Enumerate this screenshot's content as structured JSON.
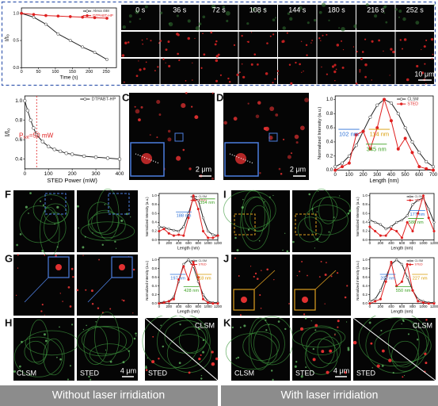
{
  "panel_labels": [
    "A",
    "B",
    "C",
    "D",
    "E",
    "F",
    "G",
    "H",
    "I",
    "J",
    "K"
  ],
  "timelapse": {
    "frames": [
      "0 s",
      "36 s",
      "72 s",
      "108 s",
      "144 s",
      "180 s",
      "216 s",
      "252 s"
    ],
    "scale_bar": "10 μm"
  },
  "charts": {
    "A": {
      "type": "line",
      "xlabel": "Time (s)",
      "ylabel": "I/I₀",
      "xlim": [
        0,
        280
      ],
      "xticks": [
        0,
        50,
        100,
        150,
        200,
        250
      ],
      "ylim": [
        0,
        1.1
      ],
      "yticks": [
        {
          "value": 0,
          "label": "0.0"
        },
        0.5,
        {
          "value": 1,
          "label": "1.0"
        }
      ],
      "x": [
        0,
        36,
        72,
        108,
        144,
        180,
        216,
        252
      ],
      "legend": "upper right",
      "series": [
        {
          "name": "Alexa 488",
          "color": "#222222",
          "values": [
            1.0,
            0.93,
            0.8,
            0.62,
            0.5,
            0.38,
            0.28,
            0.15
          ]
        },
        {
          "name": "DTPABT-HP",
          "color": "#e02020",
          "values": [
            1.0,
            0.98,
            0.96,
            0.95,
            0.94,
            0.93,
            0.92,
            0.91
          ]
        }
      ]
    },
    "B": {
      "type": "line",
      "xlabel": "STED Power (mW)",
      "ylabel": "I/I₀",
      "xlim": [
        0,
        400
      ],
      "xticks": [
        0,
        100,
        200,
        300,
        400
      ],
      "ylim": [
        0.3,
        1.05
      ],
      "yticks": [
        0.4,
        0.6,
        0.8,
        {
          "value": 1,
          "label": "1.0"
        }
      ],
      "x": [
        0,
        12,
        25,
        37,
        50,
        75,
        100,
        125,
        150,
        175,
        200,
        250,
        300,
        350,
        400
      ],
      "legend": "upper right",
      "marker_x": 50,
      "series": [
        {
          "name": "DTPABT-HP",
          "color": "#222222",
          "values": [
            1.0,
            0.9,
            0.8,
            0.72,
            0.65,
            0.58,
            0.53,
            0.5,
            0.48,
            0.46,
            0.45,
            0.43,
            0.42,
            0.41,
            0.4
          ]
        }
      ],
      "annotations": [
        {
          "text": "P",
          "sub": "sat",
          "rest": "=50 mW",
          "color": "#e02020"
        }
      ]
    },
    "E": {
      "type": "line",
      "xlabel": "Length (nm)",
      "ylabel": "Normalized Intensity (a.u.)",
      "xlim": [
        0,
        700
      ],
      "xticks": [
        0,
        100,
        200,
        300,
        400,
        500,
        600,
        700
      ],
      "ylim": [
        0,
        1.05
      ],
      "yticks": [
        {
          "value": 0,
          "label": "0.0"
        },
        0.2,
        0.4,
        0.6,
        0.8,
        {
          "value": 1,
          "label": "1.0"
        }
      ],
      "x": [
        0,
        50,
        100,
        150,
        200,
        250,
        300,
        350,
        400,
        450,
        500,
        550,
        600,
        650,
        700
      ],
      "legend": "upper right",
      "series": [
        {
          "name": "CLSM",
          "color": "#222222",
          "values": [
            0.05,
            0.1,
            0.2,
            0.35,
            0.55,
            0.75,
            0.92,
            1.0,
            0.95,
            0.8,
            0.6,
            0.4,
            0.25,
            0.12,
            0.05
          ]
        },
        {
          "name": "STED",
          "color": "#e02020",
          "values": [
            0,
            0.05,
            0.1,
            0.5,
            0.55,
            0.3,
            0.6,
            1.0,
            0.7,
            0.3,
            0.45,
            0.25,
            0.05,
            0.02,
            0
          ]
        }
      ],
      "annotations": [
        {
          "text": "102 nm",
          "color": "#2a6fd6"
        },
        {
          "text": "114 nm",
          "color": "#d99a00"
        },
        {
          "text": "345 nm",
          "color": "#3aa020"
        }
      ]
    },
    "F": {
      "type": "line",
      "xlabel": "Length (nm)",
      "ylabel": "Normalized Intensity (a.u.)",
      "xlim": [
        0,
        1200
      ],
      "xticks": [
        0,
        200,
        400,
        600,
        800,
        1000,
        1200
      ],
      "ylim": [
        0,
        1.05
      ],
      "yticks": [
        {
          "value": 0,
          "label": "0.0"
        },
        0.2,
        0.4,
        0.6,
        0.8,
        {
          "value": 1,
          "label": "1.0"
        }
      ],
      "x": [
        0,
        100,
        200,
        300,
        400,
        500,
        600,
        700,
        800,
        900,
        1000,
        1100,
        1200
      ],
      "legend": "upper right",
      "series": [
        {
          "name": "CLSM",
          "color": "#222222",
          "values": [
            0.3,
            0.28,
            0.25,
            0.22,
            0.2,
            0.3,
            0.6,
            0.95,
            0.9,
            0.5,
            0.2,
            0.12,
            0.1
          ]
        },
        {
          "name": "STED",
          "color": "#e02020",
          "values": [
            0.2,
            0.25,
            0.15,
            0.1,
            0.12,
            0.1,
            0.5,
            1.0,
            0.7,
            0.2,
            0.05,
            0.05,
            0.1
          ]
        }
      ],
      "annotations": [
        {
          "text": "188 nm",
          "color": "#2a6fd6"
        },
        {
          "text": "354 nm",
          "color": "#3aa020"
        }
      ]
    },
    "G": {
      "type": "line",
      "xlabel": "Length (nm)",
      "ylabel": "Normalized Intensity (a.u.)",
      "xlim": [
        0,
        1200
      ],
      "xticks": [
        0,
        200,
        400,
        600,
        800,
        1000,
        1200
      ],
      "ylim": [
        0,
        1.05
      ],
      "yticks": [
        {
          "value": 0,
          "label": "0.0"
        },
        0.2,
        0.4,
        0.6,
        0.8,
        {
          "value": 1,
          "label": "1.0"
        }
      ],
      "x": [
        0,
        100,
        200,
        300,
        400,
        500,
        600,
        700,
        800,
        900,
        1000,
        1100,
        1200
      ],
      "legend": "upper right",
      "series": [
        {
          "name": "CLSM",
          "color": "#222222",
          "values": [
            0.02,
            0.03,
            0.05,
            0.15,
            0.5,
            0.9,
            1.0,
            0.85,
            0.5,
            0.2,
            0.05,
            0.02,
            0.02
          ]
        },
        {
          "name": "STED",
          "color": "#e02020",
          "values": [
            0,
            0.02,
            0.05,
            0.1,
            0.55,
            0.85,
            0.55,
            0.95,
            0.6,
            0.1,
            0.02,
            0,
            0
          ]
        }
      ],
      "annotations": [
        {
          "text": "197 nm",
          "color": "#2a6fd6"
        },
        {
          "text": "218 nm",
          "color": "#d99a00"
        },
        {
          "text": "428 nm",
          "color": "#3aa020"
        }
      ]
    },
    "I": {
      "type": "line",
      "xlabel": "Length (nm)",
      "ylabel": "Normalized Intensity (a.u.)",
      "xlim": [
        0,
        1200
      ],
      "xticks": [
        0,
        200,
        400,
        600,
        800,
        1000,
        1200
      ],
      "ylim": [
        0,
        1.05
      ],
      "yticks": [
        {
          "value": 0,
          "label": "0.0"
        },
        0.2,
        0.4,
        0.6,
        0.8,
        {
          "value": 1,
          "label": "1.0"
        }
      ],
      "x": [
        0,
        100,
        200,
        300,
        400,
        500,
        600,
        700,
        800,
        900,
        1000,
        1100,
        1200
      ],
      "legend": "upper right",
      "series": [
        {
          "name": "CLSM",
          "color": "#222222",
          "values": [
            0.45,
            0.4,
            0.35,
            0.25,
            0.3,
            0.4,
            0.45,
            0.55,
            0.8,
            0.9,
            0.95,
            0.7,
            0.4
          ]
        },
        {
          "name": "STED",
          "color": "#e02020",
          "values": [
            0.3,
            0.2,
            0.1,
            0.1,
            0.25,
            0.2,
            0.05,
            0.4,
            0.2,
            0.6,
            1.0,
            0.5,
            0.2
          ]
        }
      ],
      "annotations": [
        {
          "text": "177 nm",
          "color": "#2a6fd6"
        },
        {
          "text": "588 nm",
          "color": "#3aa020"
        }
      ]
    },
    "J": {
      "type": "line",
      "xlabel": "Length (nm)",
      "ylabel": "Normalized Intensity (a.u.)",
      "xlim": [
        0,
        1200
      ],
      "xticks": [
        0,
        200,
        400,
        600,
        800,
        1000,
        1200
      ],
      "ylim": [
        0,
        1.05
      ],
      "yticks": [
        {
          "value": 0,
          "label": "0.0"
        },
        0.2,
        0.4,
        0.6,
        0.8,
        {
          "value": 1,
          "label": "1.0"
        }
      ],
      "x": [
        0,
        100,
        200,
        300,
        400,
        500,
        600,
        700,
        800,
        900,
        1000,
        1100,
        1200
      ],
      "legend": "upper right",
      "series": [
        {
          "name": "CLSM",
          "color": "#222222",
          "values": [
            0.05,
            0.1,
            0.3,
            0.6,
            0.9,
            1.0,
            0.9,
            0.6,
            0.3,
            0.1,
            0.05,
            0.02,
            0.02
          ]
        },
        {
          "name": "STED",
          "color": "#e02020",
          "values": [
            0,
            0.05,
            0.1,
            0.5,
            0.95,
            0.4,
            0.5,
            0.9,
            0.3,
            0.05,
            0.02,
            0,
            0
          ]
        }
      ],
      "annotations": [
        {
          "text": "202 nm",
          "color": "#2a6fd6"
        },
        {
          "text": "227 nm",
          "color": "#d99a00"
        },
        {
          "text": "550 nm",
          "color": "#3aa020"
        }
      ]
    }
  },
  "image_labels": {
    "C_scale": "2 μm",
    "D_scale": "2 μm",
    "H": {
      "left": "CLSM",
      "middle": "STED",
      "right_top": "CLSM",
      "right_bottom": "STED",
      "scale": "4 μm"
    },
    "K": {
      "left": "CLSM",
      "middle": "STED",
      "right_top": "CLSM",
      "right_bottom": "STED",
      "scale": "4 μm"
    }
  },
  "banner": [
    "Without laser irridiation",
    "With laser irridiation"
  ]
}
